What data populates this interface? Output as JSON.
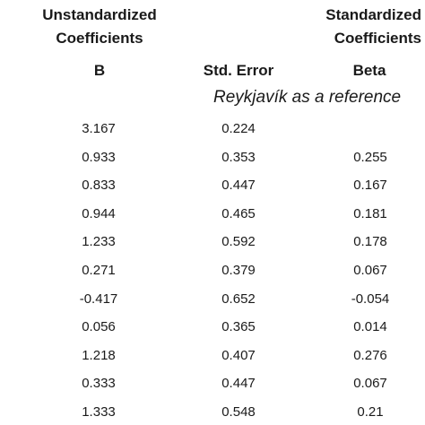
{
  "header": {
    "unstandardized_line1": "Unstandardized",
    "unstandardized_line2": "Coefficients",
    "standardized_line1": "Standardized",
    "standardized_line2": "Coefficients",
    "col_b": "B",
    "col_std_error": "Std. Error",
    "col_beta": "Beta"
  },
  "reference_note": "Reykjavík as a reference",
  "rows": [
    {
      "b": "3.167",
      "std_error": "0.224",
      "beta": ""
    },
    {
      "b": "0.933",
      "std_error": "0.353",
      "beta": "0.255"
    },
    {
      "b": "0.833",
      "std_error": "0.447",
      "beta": "0.167"
    },
    {
      "b": "0.944",
      "std_error": "0.465",
      "beta": "0.181"
    },
    {
      "b": "1.233",
      "std_error": "0.592",
      "beta": "0.178"
    },
    {
      "b": "0.271",
      "std_error": "0.379",
      "beta": "0.067"
    },
    {
      "b": "-0.417",
      "std_error": "0.652",
      "beta": "-0.054"
    },
    {
      "b": "0.056",
      "std_error": "0.365",
      "beta": "0.014"
    },
    {
      "b": "1.218",
      "std_error": "0.407",
      "beta": "0.276"
    },
    {
      "b": "0.333",
      "std_error": "0.447",
      "beta": "0.067"
    },
    {
      "b": "1.333",
      "std_error": "0.548",
      "beta": "0.21"
    }
  ]
}
